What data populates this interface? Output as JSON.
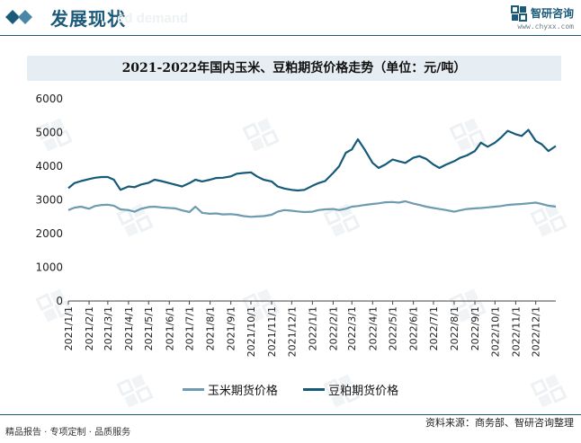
{
  "header": {
    "section_title": "发展现状",
    "ghost_text": "ed demand",
    "brand_name": "智研咨询",
    "brand_url": "www.chyxx.com"
  },
  "footer": {
    "slogan": "精品报告 · 专项定制 · 品质服务",
    "source": "资料来源：商务部、智研咨询整理"
  },
  "colors": {
    "corn": "#6d9bb0",
    "soymeal": "#155a78",
    "brand": "#1c5a7a"
  },
  "chart_data": {
    "type": "line",
    "title": "2021-2022年国内玉米、豆粕期货价格走势（单位：元/吨）",
    "ylim": [
      0,
      6000
    ],
    "yticks": [
      0,
      1000,
      2000,
      3000,
      4000,
      5000,
      6000
    ],
    "grid": false,
    "legend_position": "bottom",
    "x_tick_labels": [
      "2021/1/1",
      "2021/2/1",
      "2021/3/1",
      "2021/4/1",
      "2021/5/1",
      "2021/6/1",
      "2021/7/1",
      "2021/8/1",
      "2021/9/1",
      "2021/10/1",
      "2021/11/1",
      "2021/12/1",
      "2022/1/1",
      "2022/2/1",
      "2022/3/1",
      "2022/4/1",
      "2022/5/1",
      "2022/6/1",
      "2022/7/1",
      "2022/8/1",
      "2022/9/1",
      "2022/10/1",
      "2022/11/1",
      "2022/12/1"
    ],
    "x": [
      "2021-01-01",
      "2021-01-10",
      "2021-01-20",
      "2021-02-01",
      "2021-02-10",
      "2021-02-20",
      "2021-03-01",
      "2021-03-10",
      "2021-03-20",
      "2021-04-01",
      "2021-04-10",
      "2021-04-20",
      "2021-05-01",
      "2021-05-10",
      "2021-05-20",
      "2021-06-01",
      "2021-06-10",
      "2021-06-20",
      "2021-07-01",
      "2021-07-10",
      "2021-07-20",
      "2021-08-01",
      "2021-08-10",
      "2021-08-20",
      "2021-09-01",
      "2021-09-10",
      "2021-09-20",
      "2021-10-01",
      "2021-10-10",
      "2021-10-20",
      "2021-11-01",
      "2021-11-10",
      "2021-11-20",
      "2021-12-01",
      "2021-12-10",
      "2021-12-20",
      "2022-01-01",
      "2022-01-10",
      "2022-01-20",
      "2022-02-01",
      "2022-02-10",
      "2022-02-20",
      "2022-03-01",
      "2022-03-10",
      "2022-03-20",
      "2022-04-01",
      "2022-04-10",
      "2022-04-20",
      "2022-05-01",
      "2022-05-10",
      "2022-05-20",
      "2022-06-01",
      "2022-06-10",
      "2022-06-20",
      "2022-07-01",
      "2022-07-10",
      "2022-07-20",
      "2022-08-01",
      "2022-08-10",
      "2022-08-20",
      "2022-09-01",
      "2022-09-10",
      "2022-09-20",
      "2022-10-01",
      "2022-10-10",
      "2022-10-20",
      "2022-11-01",
      "2022-11-10",
      "2022-11-20",
      "2022-12-01",
      "2022-12-10",
      "2022-12-20",
      "2022-12-31"
    ],
    "series": [
      {
        "name": "玉米期货价格",
        "values": [
          2700,
          2770,
          2800,
          2740,
          2820,
          2850,
          2860,
          2830,
          2720,
          2700,
          2650,
          2740,
          2790,
          2800,
          2780,
          2760,
          2750,
          2690,
          2640,
          2800,
          2620,
          2590,
          2600,
          2570,
          2580,
          2560,
          2520,
          2500,
          2510,
          2520,
          2560,
          2650,
          2700,
          2680,
          2660,
          2640,
          2650,
          2700,
          2720,
          2730,
          2700,
          2740,
          2800,
          2820,
          2850,
          2880,
          2900,
          2930,
          2940,
          2920,
          2960,
          2890,
          2850,
          2800,
          2760,
          2730,
          2700,
          2650,
          2690,
          2730,
          2750,
          2760,
          2780,
          2800,
          2820,
          2850,
          2870,
          2880,
          2900,
          2920,
          2880,
          2830,
          2800
        ]
      },
      {
        "name": "豆粕期货价格",
        "values": [
          3350,
          3500,
          3560,
          3620,
          3660,
          3680,
          3680,
          3600,
          3300,
          3400,
          3380,
          3460,
          3510,
          3600,
          3560,
          3500,
          3450,
          3400,
          3500,
          3600,
          3550,
          3600,
          3650,
          3660,
          3700,
          3780,
          3800,
          3820,
          3700,
          3600,
          3550,
          3400,
          3340,
          3300,
          3280,
          3300,
          3420,
          3500,
          3560,
          3800,
          4000,
          4400,
          4500,
          4800,
          4500,
          4100,
          3950,
          4050,
          4200,
          4150,
          4100,
          4250,
          4300,
          4220,
          4050,
          3950,
          4050,
          4150,
          4250,
          4320,
          4450,
          4700,
          4580,
          4700,
          4850,
          5050,
          4950,
          4900,
          5080,
          4750,
          4650,
          4450,
          4600
        ]
      }
    ]
  }
}
